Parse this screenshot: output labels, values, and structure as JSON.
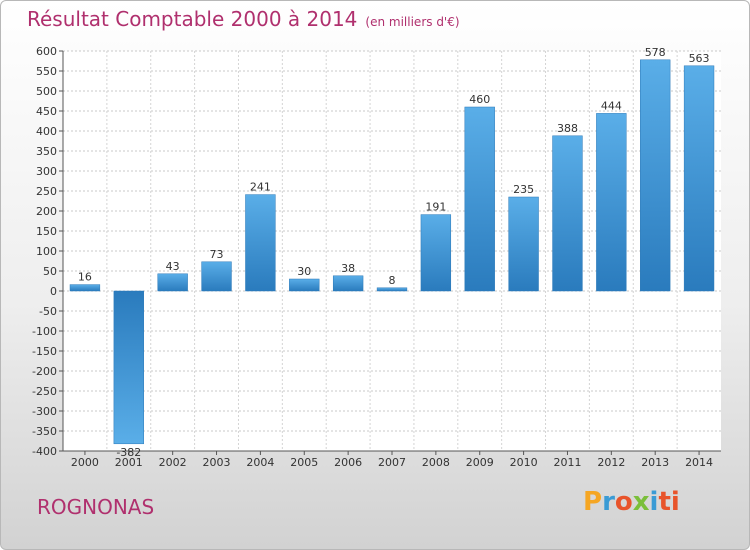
{
  "header": {
    "title": "Résultat Comptable 2000 à 2014",
    "subtitle": "(en milliers d'€)"
  },
  "footer": {
    "commune": "ROGNONAS",
    "brand": "Proxiti",
    "brand_letters": [
      "P",
      "r",
      "o",
      "x",
      "i",
      "ti"
    ]
  },
  "chart_data": {
    "type": "bar",
    "title": "Résultat Comptable 2000 à 2014",
    "unit": "(en milliers d'€)",
    "categories": [
      "2000",
      "2001",
      "2002",
      "2003",
      "2004",
      "2005",
      "2006",
      "2007",
      "2008",
      "2009",
      "2010",
      "2011",
      "2012",
      "2013",
      "2014"
    ],
    "values": [
      16,
      -382,
      43,
      73,
      241,
      30,
      38,
      8,
      191,
      460,
      235,
      388,
      444,
      578,
      563
    ],
    "ylim": [
      -400,
      600
    ],
    "yticks": [
      600,
      550,
      500,
      450,
      400,
      350,
      300,
      250,
      200,
      150,
      100,
      50,
      0,
      -50,
      -100,
      -150,
      -200,
      -250,
      -300,
      -350,
      -400
    ],
    "grid": true,
    "bar_color": "#3a8fd6"
  }
}
